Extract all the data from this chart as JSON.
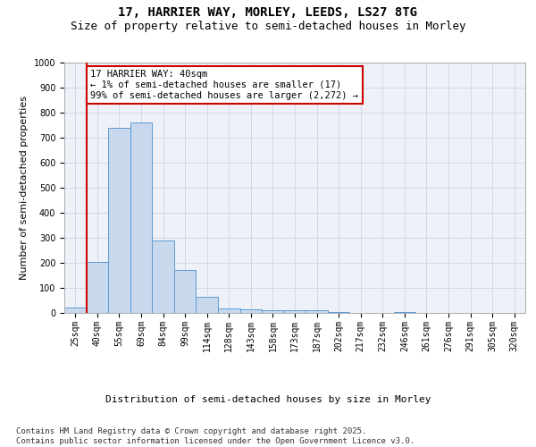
{
  "title_line1": "17, HARRIER WAY, MORLEY, LEEDS, LS27 8TG",
  "title_line2": "Size of property relative to semi-detached houses in Morley",
  "xlabel": "Distribution of semi-detached houses by size in Morley",
  "ylabel": "Number of semi-detached properties",
  "categories": [
    "25sqm",
    "40sqm",
    "55sqm",
    "69sqm",
    "84sqm",
    "99sqm",
    "114sqm",
    "128sqm",
    "143sqm",
    "158sqm",
    "173sqm",
    "187sqm",
    "202sqm",
    "217sqm",
    "232sqm",
    "246sqm",
    "261sqm",
    "276sqm",
    "291sqm",
    "305sqm",
    "320sqm"
  ],
  "values": [
    20,
    205,
    740,
    760,
    290,
    170,
    65,
    18,
    16,
    12,
    10,
    12,
    5,
    1,
    0,
    4,
    0,
    1,
    0,
    0,
    0
  ],
  "highlight_index": 1,
  "bar_color": "#c9d9ed",
  "bar_edgecolor": "#5b9bd5",
  "highlight_line_color": "#cc0000",
  "annotation_text": "17 HARRIER WAY: 40sqm\n← 1% of semi-detached houses are smaller (17)\n99% of semi-detached houses are larger (2,272) →",
  "annotation_box_edgecolor": "#cc0000",
  "ylim": [
    0,
    1000
  ],
  "yticks": [
    0,
    100,
    200,
    300,
    400,
    500,
    600,
    700,
    800,
    900,
    1000
  ],
  "grid_color": "#d0d8e8",
  "background_color": "#eef2f8",
  "footer_line1": "Contains HM Land Registry data © Crown copyright and database right 2025.",
  "footer_line2": "Contains public sector information licensed under the Open Government Licence v3.0.",
  "title_fontsize": 10,
  "subtitle_fontsize": 9,
  "axis_label_fontsize": 8,
  "tick_fontsize": 7,
  "annotation_fontsize": 7.5,
  "footer_fontsize": 6.5
}
